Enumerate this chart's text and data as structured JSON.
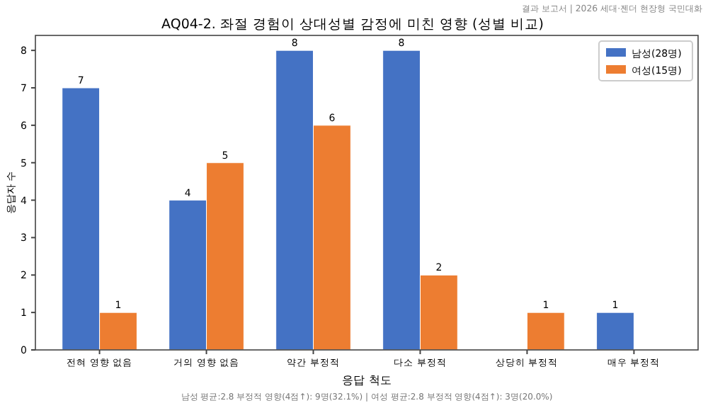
{
  "chart_data": {
    "type": "bar",
    "title": "AQ04-2. 좌절 경험이 상대성별 감정에 미친 영향 (성별 비교)",
    "xlabel": "응답 척도",
    "ylabel": "응답자 수",
    "categories": [
      "전혀 영향 없음",
      "거의 영향 없음",
      "약간 부정적",
      "다소 부정적",
      "상당히 부정적",
      "매우 부정적"
    ],
    "series": [
      {
        "name": "남성(28명)",
        "color": "#4472c4",
        "values": [
          7,
          4,
          8,
          8,
          0,
          1
        ],
        "value_labels": [
          "7",
          "4",
          "8",
          "8",
          null,
          "1"
        ]
      },
      {
        "name": "여성(15명)",
        "color": "#ed7d31",
        "values": [
          1,
          5,
          6,
          2,
          1,
          0
        ],
        "value_labels": [
          "1",
          "5",
          "6",
          "2",
          "1",
          null
        ]
      }
    ],
    "ylim": [
      0,
      8.4
    ],
    "yticks": [
      0,
      1,
      2,
      3,
      4,
      5,
      6,
      7,
      8
    ],
    "legend": "top right",
    "grid": false,
    "annotations": [
      "결과 보고서 | 2026 세대·젠더 현장형 국민대화",
      "남성 평균:2.8  부정적 영향(4점↑): 9명(32.1%)  |  여성 평균:2.8  부정적 영향(4점↑): 3명(20.0%)"
    ]
  }
}
